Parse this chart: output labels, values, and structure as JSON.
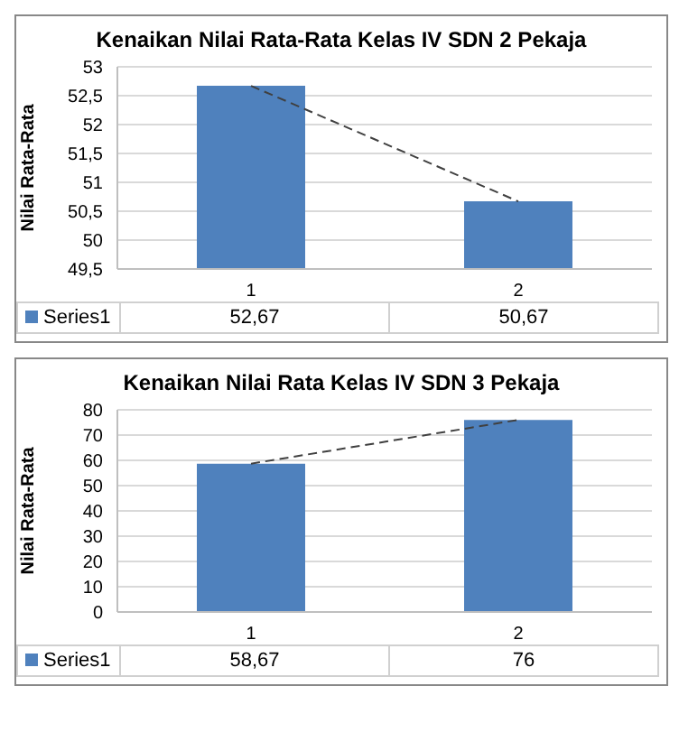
{
  "chart_data": [
    {
      "type": "bar",
      "title": "Kenaikan Nilai Rata-Rata Kelas IV SDN 2 Pekaja",
      "ylabel": "Nilai Rata-Rata",
      "categories": [
        "1",
        "2"
      ],
      "series": [
        {
          "name": "Series1",
          "color": "#4f81bd",
          "values": [
            52.67,
            50.67
          ],
          "value_labels": [
            "52,67",
            "50,67"
          ]
        },
        {
          "type": "line",
          "color": "#404040",
          "line_style": "dashed",
          "values": [
            52.67,
            50.67
          ]
        }
      ],
      "ylim": [
        49.5,
        53
      ],
      "yticks": [
        {
          "value": 49.5,
          "label": "49,5"
        },
        50,
        {
          "value": 50.5,
          "label": "50,5"
        },
        51,
        {
          "value": 51.5,
          "label": "51,5"
        },
        52,
        {
          "value": 52.5,
          "label": "52,5"
        },
        53
      ],
      "grid": "y",
      "legend": "bottom"
    },
    {
      "type": "bar",
      "title": "Kenaikan Nilai Rata Kelas IV SDN 3 Pekaja",
      "ylabel": "Nilai Rata-Rata",
      "categories": [
        "1",
        "2"
      ],
      "series": [
        {
          "name": "Series1",
          "color": "#4f81bd",
          "values": [
            58.67,
            76
          ],
          "value_labels": [
            "58,67",
            "76"
          ]
        },
        {
          "type": "line",
          "color": "#404040",
          "line_style": "dashed",
          "values": [
            58.67,
            76
          ]
        }
      ],
      "ylim": [
        0,
        80
      ],
      "yticks": [
        0,
        10,
        20,
        30,
        40,
        50,
        60,
        70,
        80
      ],
      "grid": "y",
      "legend": "bottom"
    }
  ]
}
